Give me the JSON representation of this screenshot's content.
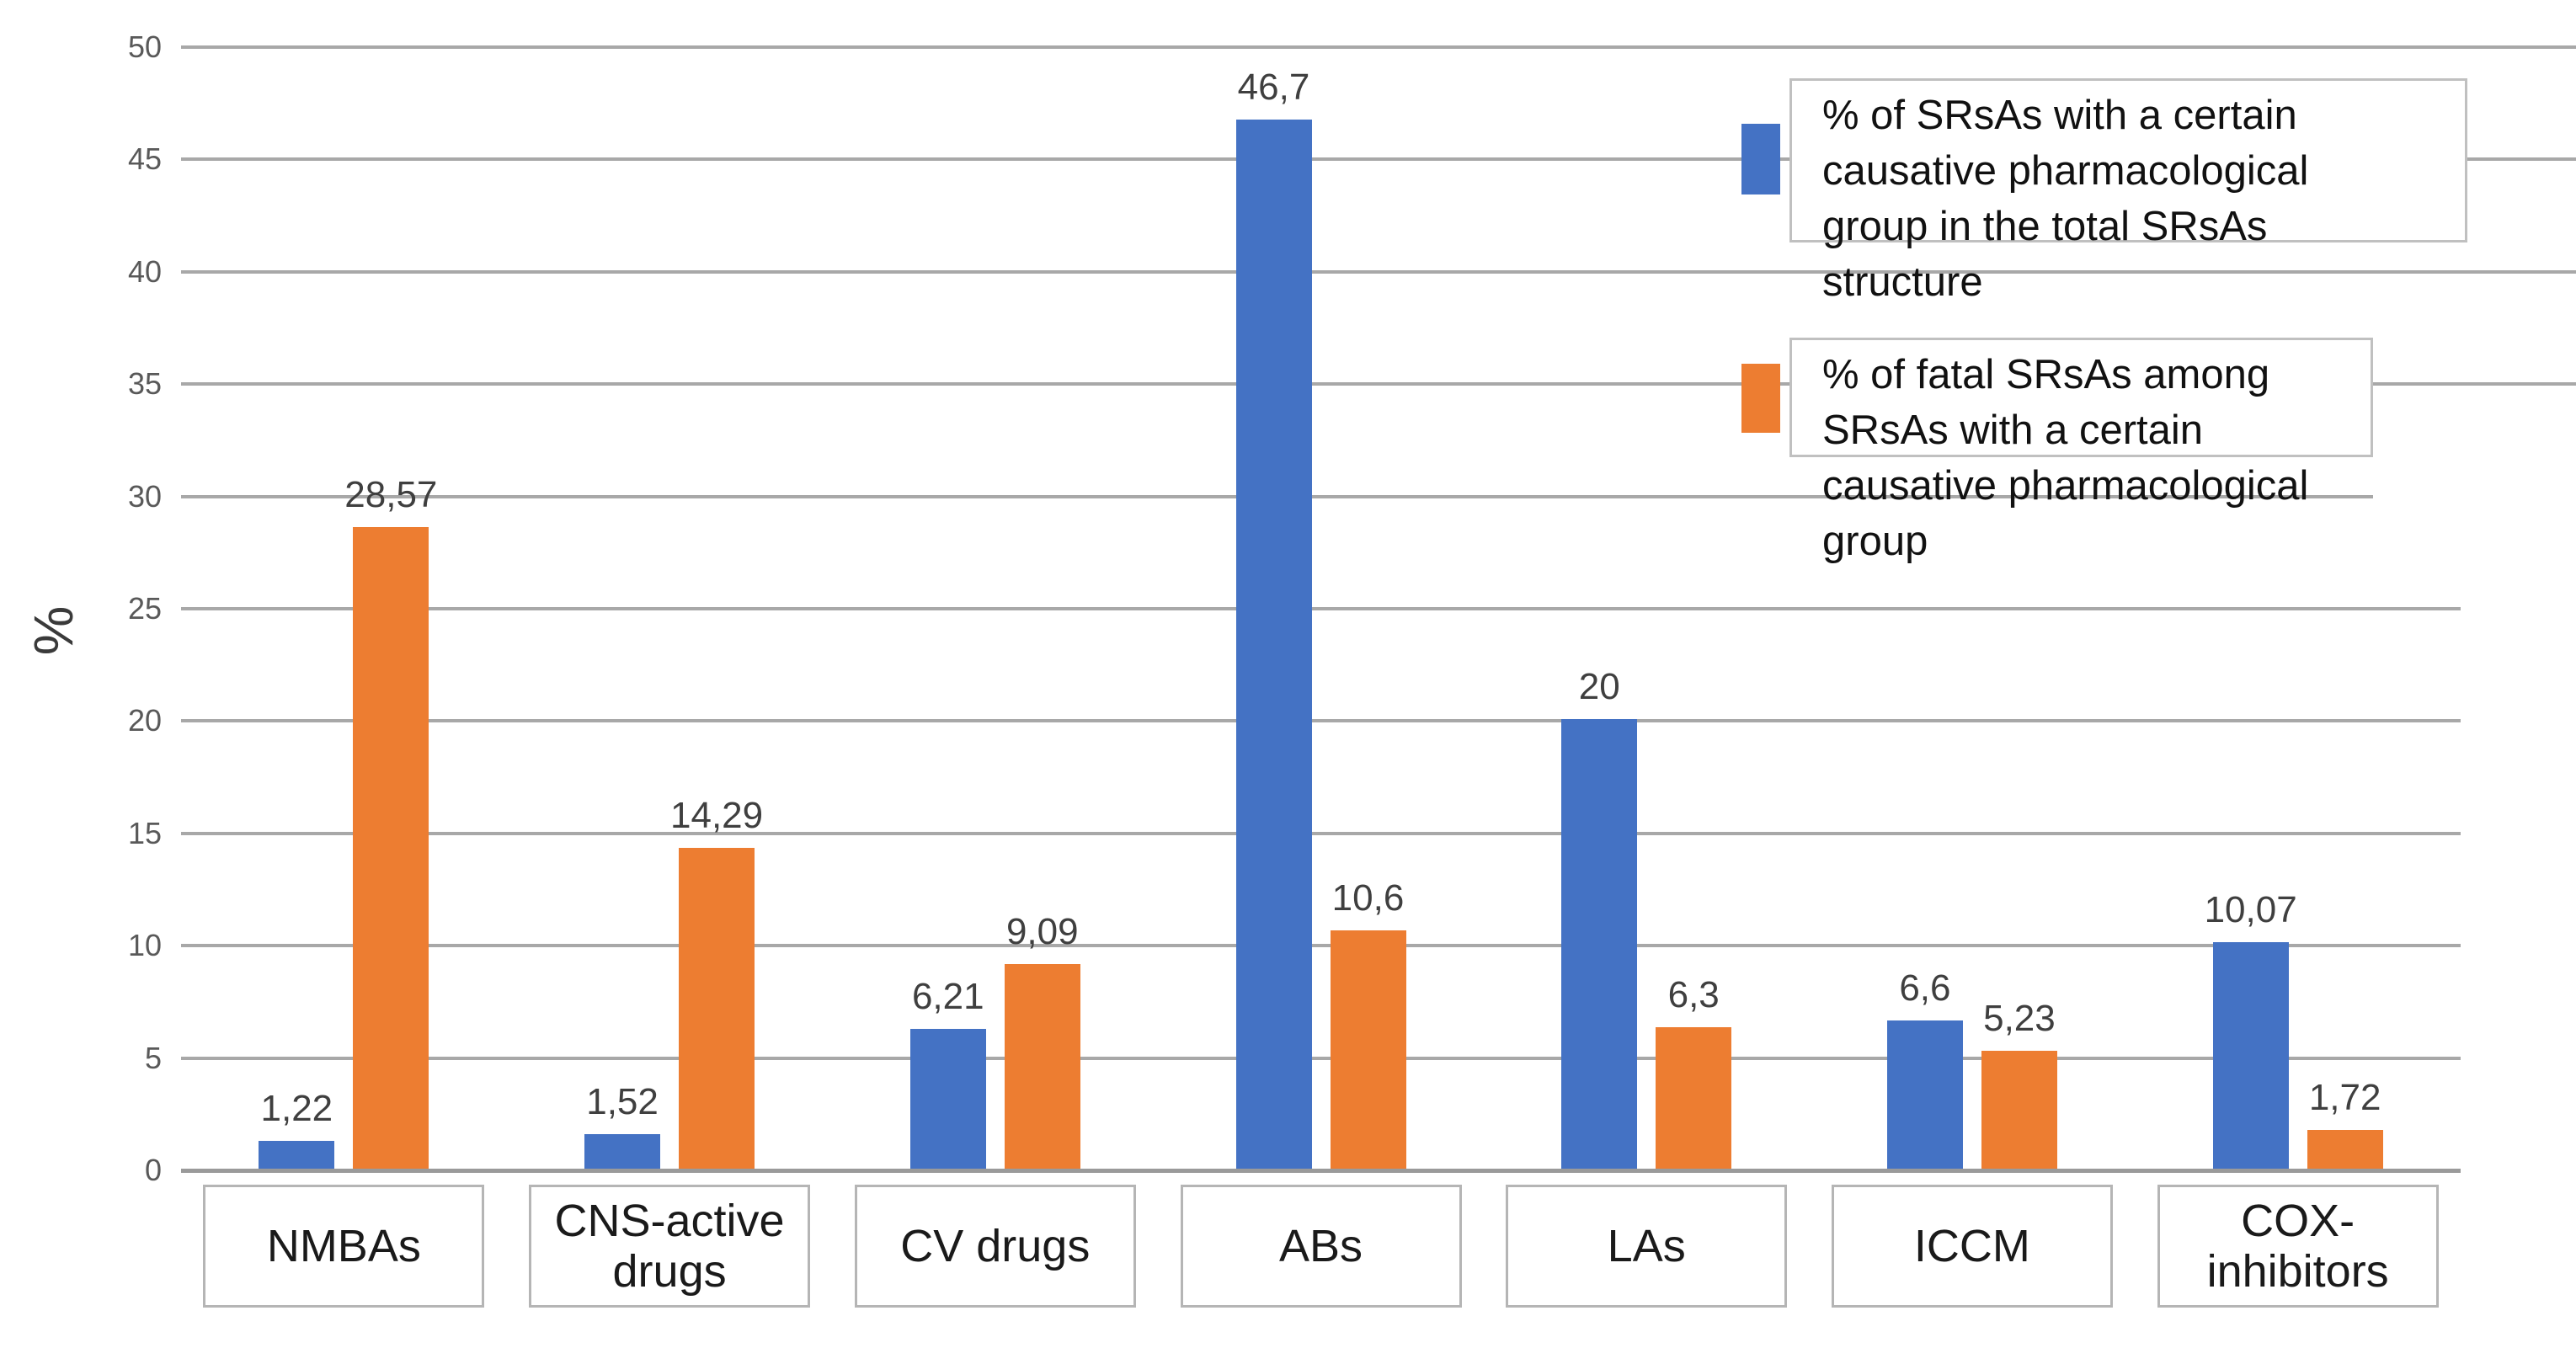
{
  "chart_data": {
    "type": "bar",
    "title": "",
    "xlabel": "",
    "ylabel": "%",
    "ylim": [
      0,
      50
    ],
    "ytick_step": 5,
    "yticks": [
      "0",
      "5",
      "10",
      "15",
      "20",
      "25",
      "30",
      "35",
      "40",
      "45",
      "50"
    ],
    "grid": "horizontal",
    "legend_position": "top-right overlay",
    "categories": [
      "NMBAs",
      "CNS-active drugs",
      "CV drugs",
      "ABs",
      "LAs",
      "ICCM",
      "COX-inhibitors"
    ],
    "series": [
      {
        "name": "% of SRsAs with a certain causative pharmacological group in the total SRsAs structure",
        "color": "#4472C4",
        "values": [
          1.22,
          1.52,
          6.21,
          46.7,
          20,
          6.6,
          10.07
        ],
        "labels": [
          "1,22",
          "1,52",
          "6,21",
          "46,7",
          "20",
          "6,6",
          "10,07"
        ]
      },
      {
        "name": "% of fatal SRsAs among SRsAs with a certain causative pharmacological group",
        "color": "#ED7D31",
        "values": [
          28.57,
          14.29,
          9.09,
          10.6,
          6.3,
          5.23,
          1.72
        ],
        "labels": [
          "28,57",
          "14,29",
          "9,09",
          "10,6",
          "6,3",
          "5,23",
          "1,72"
        ]
      }
    ],
    "legend": {
      "entries": [
        {
          "swatch_color": "#4472C4",
          "lines": [
            "% of SRsAs with a certain",
            "causative pharmacological",
            "group in the total SRsAs",
            "structure"
          ]
        },
        {
          "swatch_color": "#ED7D31",
          "lines": [
            "% of fatal SRsAs among",
            "SRsAs with a certain",
            "causative pharmacological",
            "group"
          ]
        }
      ]
    }
  }
}
